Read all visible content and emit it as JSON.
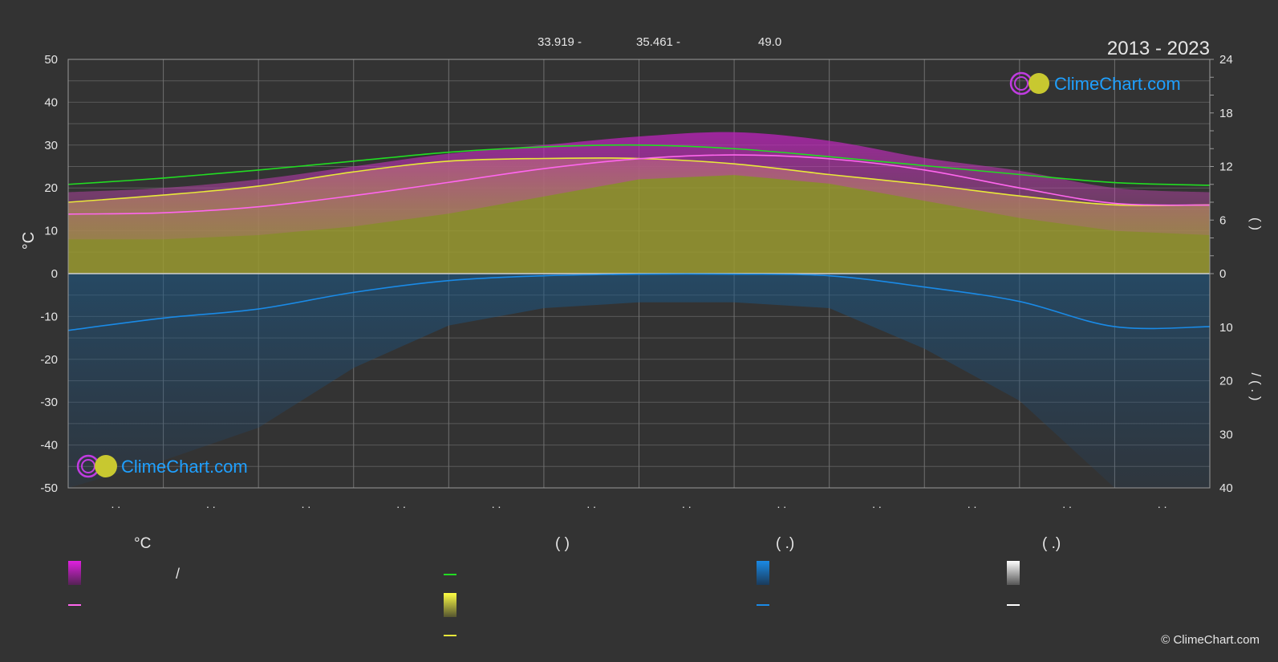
{
  "header": {
    "period": "2013 - 2023",
    "coordinates": [
      "33.919 -",
      "35.461 -",
      "49.0"
    ]
  },
  "brand": {
    "logo_text": "ClimeChart.com",
    "copyright": "© ClimeChart.com"
  },
  "colors": {
    "background": "#333333",
    "grid": "#5a5a5a",
    "axis_text": "#e6e6e6",
    "daylight": "#22dd22",
    "sunshine": "#e8e83a",
    "daily_temp_mean": "#ff66ee",
    "temp_band": "#e020e0",
    "sunshine_band": "#9a9a30",
    "precipitation": "#1a8ae6",
    "precip_band": "#1a5a8a",
    "snow": "#ffffff",
    "logo_blue": "#1fa0ff"
  },
  "legend": {
    "temp_heading": "°C",
    "sun_heading": "(          )",
    "rain_heading": "(   .)",
    "snow_heading": "(   .)",
    "temp_range_slash": "/"
  },
  "chart_data": {
    "type": "area",
    "months_label_placeholder": ". .",
    "left_axis": {
      "label": "°C",
      "ticks": [
        50,
        40,
        30,
        20,
        10,
        0,
        -10,
        -20,
        -30,
        -40,
        -50
      ],
      "range": [
        -50,
        50
      ]
    },
    "right_axis_top": {
      "label": "(  )",
      "ticks": [
        24,
        18,
        12,
        6,
        0
      ],
      "range": [
        0,
        24
      ]
    },
    "right_axis_bottom": {
      "label": "/  (  .  )",
      "ticks": [
        0,
        10,
        20,
        30,
        40
      ],
      "range": [
        0,
        40
      ]
    },
    "x": [
      0,
      1,
      2,
      3,
      4,
      5,
      6,
      7,
      8,
      9,
      10,
      11,
      12
    ],
    "series": [
      {
        "key": "daylight",
        "axis": "hours",
        "values": [
          10.0,
          10.7,
          11.6,
          12.6,
          13.6,
          14.2,
          14.4,
          14.0,
          13.1,
          12.1,
          11.1,
          10.2,
          9.9
        ]
      },
      {
        "key": "sunshine",
        "axis": "hours",
        "values": [
          8.0,
          8.8,
          9.8,
          11.4,
          12.6,
          12.9,
          12.9,
          12.3,
          11.1,
          10.0,
          8.7,
          7.7,
          7.7
        ]
      },
      {
        "key": "daily_temp_mean",
        "axis": "celsius",
        "values": [
          13.9,
          14.2,
          15.6,
          18.2,
          21.3,
          24.5,
          26.8,
          27.7,
          26.8,
          24.2,
          20.0,
          16.4,
          16.0
        ]
      },
      {
        "key": "precipitation",
        "axis": "mm",
        "values": [
          10.6,
          8.3,
          6.6,
          3.5,
          1.3,
          0.4,
          0.1,
          0.1,
          0.4,
          2.5,
          5.2,
          9.9,
          9.9
        ]
      }
    ],
    "temp_band": {
      "min": [
        8,
        8,
        9,
        11,
        14,
        18,
        22,
        23,
        21,
        17,
        13,
        10,
        9
      ],
      "max": [
        19,
        20,
        22,
        25,
        28,
        30,
        32,
        33,
        31,
        27,
        24,
        20,
        19
      ]
    },
    "sunshine_fill_hours": [
      8.0,
      8.8,
      9.8,
      11.4,
      12.6,
      12.9,
      12.9,
      12.3,
      11.1,
      10.0,
      8.7,
      7.7,
      7.7
    ]
  }
}
